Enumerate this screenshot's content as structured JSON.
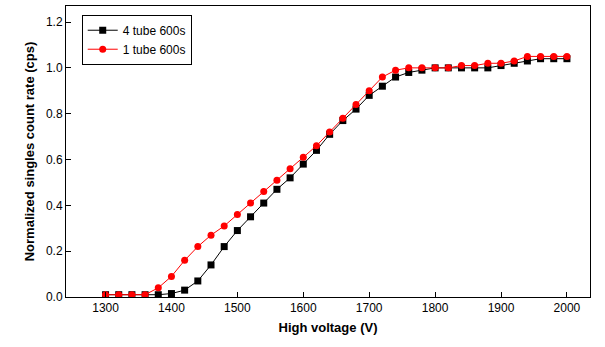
{
  "chart_data": {
    "type": "line",
    "x_label": "High voltage (V)",
    "y_label": "Normalized singles count rate (cps)",
    "x": [
      1300,
      1320,
      1340,
      1360,
      1380,
      1400,
      1420,
      1440,
      1460,
      1480,
      1500,
      1520,
      1540,
      1560,
      1580,
      1600,
      1620,
      1640,
      1660,
      1680,
      1700,
      1720,
      1740,
      1760,
      1780,
      1800,
      1820,
      1840,
      1860,
      1880,
      1900,
      1920,
      1940,
      1960,
      1980,
      2000
    ],
    "series": [
      {
        "name": "4 tube 600s",
        "color": "#000000",
        "marker": "square",
        "line_style": "solid",
        "values": [
          0.01,
          0.01,
          0.01,
          0.01,
          0.01,
          0.015,
          0.03,
          0.07,
          0.14,
          0.22,
          0.29,
          0.35,
          0.41,
          0.47,
          0.52,
          0.58,
          0.64,
          0.71,
          0.77,
          0.82,
          0.88,
          0.92,
          0.96,
          0.98,
          0.99,
          1.0,
          1.0,
          1.0,
          1.0,
          1.0,
          1.01,
          1.02,
          1.03,
          1.04,
          1.04,
          1.04
        ]
      },
      {
        "name": "1 tube 600s",
        "color": "#ff0000",
        "marker": "circle",
        "line_style": "solid",
        "values": [
          0.01,
          0.01,
          0.01,
          0.01,
          0.04,
          0.09,
          0.16,
          0.22,
          0.27,
          0.31,
          0.36,
          0.41,
          0.46,
          0.51,
          0.56,
          0.61,
          0.66,
          0.72,
          0.78,
          0.84,
          0.9,
          0.96,
          0.99,
          1.0,
          1.0,
          1.0,
          1.0,
          1.01,
          1.01,
          1.02,
          1.02,
          1.03,
          1.05,
          1.05,
          1.05,
          1.05
        ]
      }
    ],
    "xlim": [
      1240,
      2035
    ],
    "xticks": [
      1300,
      1400,
      1500,
      1600,
      1700,
      1800,
      1900,
      2000
    ],
    "ylim": [
      0,
      1.27
    ],
    "yticks": [
      {
        "value": 0,
        "label": "0.0"
      },
      {
        "value": 0.2,
        "label": "0.2"
      },
      {
        "value": 0.4,
        "label": "0.4"
      },
      {
        "value": 0.6,
        "label": "0.6"
      },
      {
        "value": 0.8,
        "label": "0.8"
      },
      {
        "value": 1,
        "label": "1.0"
      },
      {
        "value": 1.2,
        "label": "1.2"
      }
    ],
    "grid": false,
    "legend": "top-left"
  }
}
